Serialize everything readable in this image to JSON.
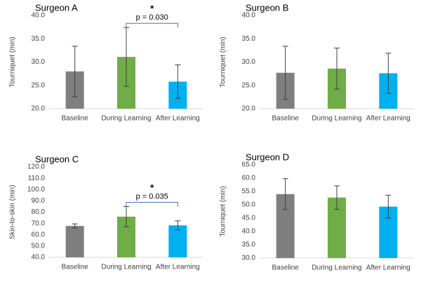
{
  "chart_data": [
    {
      "type": "bar",
      "title": "Surgeon A",
      "y_label": "Tourniquet (min)",
      "categories": [
        "Baseline",
        "During Learning",
        "After Learning"
      ],
      "values": [
        28.0,
        31.1,
        25.8
      ],
      "errors": [
        5.4,
        6.3,
        3.6
      ],
      "colors": [
        "#7f7f7f",
        "#70ad47",
        "#00b0f0"
      ],
      "ylim": [
        20,
        40
      ],
      "yticks": [
        {
          "value": 20,
          "label": "20.0"
        },
        {
          "value": 25,
          "label": "25.0"
        },
        {
          "value": 30,
          "label": "30.0"
        },
        {
          "value": 35,
          "label": "35.0"
        },
        {
          "value": 40,
          "label": "40.0"
        }
      ],
      "significance": {
        "marker": "*",
        "label": "p = 0.030"
      }
    },
    {
      "type": "bar",
      "title": "Surgeon B",
      "y_label": "Tourniquet (min)",
      "categories": [
        "Baseline",
        "During Learning",
        "After Learning"
      ],
      "values": [
        27.7,
        28.6,
        27.6
      ],
      "errors": [
        5.7,
        4.4,
        4.3
      ],
      "colors": [
        "#7f7f7f",
        "#70ad47",
        "#00b0f0"
      ],
      "ylim": [
        20,
        40
      ],
      "yticks": [
        {
          "value": 20,
          "label": "20.0"
        },
        {
          "value": 25,
          "label": "25.0"
        },
        {
          "value": 30,
          "label": "30.0"
        },
        {
          "value": 35,
          "label": "35.0"
        },
        {
          "value": 40,
          "label": "40.0"
        }
      ]
    },
    {
      "type": "bar",
      "title": "Surgeon C",
      "y_label": "Skin-to-skin (min)",
      "categories": [
        "Baseline",
        "During Learning",
        "After Learning"
      ],
      "values": [
        67.8,
        76.0,
        68.3
      ],
      "errors": [
        1.8,
        9.0,
        4.0
      ],
      "colors": [
        "#7f7f7f",
        "#70ad47",
        "#00b0f0"
      ],
      "ylim": [
        40,
        120
      ],
      "yticks": [
        {
          "value": 40,
          "label": "40.0"
        },
        {
          "value": 50,
          "label": "50.0"
        },
        {
          "value": 60,
          "label": "60.0"
        },
        {
          "value": 70,
          "label": "70.0"
        },
        {
          "value": 80,
          "label": "80.0"
        },
        {
          "value": 90,
          "label": "90.0"
        },
        {
          "value": 100,
          "label": "100.0"
        },
        {
          "value": 110,
          "label": "110.0"
        },
        {
          "value": 120,
          "label": "120.0"
        }
      ],
      "significance": {
        "marker": "*",
        "label": "p = 0.035"
      }
    },
    {
      "type": "bar",
      "title": "Surgeon D",
      "y_label": "Tourniquet (min)",
      "categories": [
        "Baseline",
        "During Learning",
        "After Learning"
      ],
      "values": [
        54.0,
        52.7,
        49.3
      ],
      "errors": [
        5.8,
        4.4,
        4.3
      ],
      "colors": [
        "#7f7f7f",
        "#70ad47",
        "#00b0f0"
      ],
      "ylim": [
        30,
        65
      ],
      "yticks": [
        {
          "value": 30,
          "label": "30.0"
        },
        {
          "value": 35,
          "label": "35.0"
        },
        {
          "value": 40,
          "label": "40.0"
        },
        {
          "value": 45,
          "label": "45.0"
        },
        {
          "value": 50,
          "label": "50.0"
        },
        {
          "value": 55,
          "label": "55.0"
        },
        {
          "value": 60,
          "label": "60.0"
        },
        {
          "value": 65,
          "label": "65.0"
        }
      ]
    }
  ]
}
